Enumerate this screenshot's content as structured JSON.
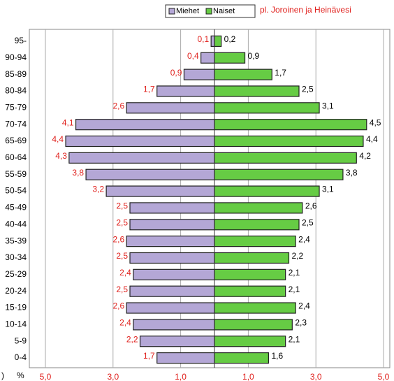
{
  "chart_data": {
    "type": "population-pyramid",
    "legend_annotation": "pl. Joroinen ja Heinävesi",
    "axis_unit": "%",
    "edge_text": ")",
    "categories": [
      "95-",
      "90-94",
      "85-89",
      "80-84",
      "75-79",
      "70-74",
      "65-69",
      "60-64",
      "55-59",
      "50-54",
      "45-49",
      "40-44",
      "35-39",
      "30-34",
      "25-29",
      "20-24",
      "15-19",
      "10-14",
      "5-9",
      "0-4"
    ],
    "series": [
      {
        "name": "Miehet",
        "color": "#b4a7d6",
        "label_color": "#e0201c",
        "side": "left",
        "values": [
          0.1,
          0.4,
          0.9,
          1.7,
          2.6,
          4.1,
          4.4,
          4.3,
          3.8,
          3.2,
          2.5,
          2.5,
          2.6,
          2.5,
          2.4,
          2.5,
          2.6,
          2.4,
          2.2,
          1.7
        ],
        "value_labels": [
          "0,1",
          "0,4",
          "0,9",
          "1,7",
          "2,6",
          "4,1",
          "4,4",
          "4,3",
          "3,8",
          "3,2",
          "2,5",
          "2,5",
          "2,6",
          "2,5",
          "2,4",
          "2,5",
          "2,6",
          "2,4",
          "2,2",
          "1,7"
        ]
      },
      {
        "name": "Naiset",
        "color": "#66cc44",
        "label_color": "#000000",
        "side": "right",
        "values": [
          0.2,
          0.9,
          1.7,
          2.5,
          3.1,
          4.5,
          4.4,
          4.2,
          3.8,
          3.1,
          2.6,
          2.5,
          2.4,
          2.2,
          2.1,
          2.1,
          2.4,
          2.3,
          2.1,
          1.6
        ],
        "value_labels": [
          "0,2",
          "0,9",
          "1,7",
          "2,5",
          "3,1",
          "4,5",
          "4,4",
          "4,2",
          "3,8",
          "3,1",
          "2,6",
          "2,5",
          "2,4",
          "2,2",
          "2,1",
          "2,1",
          "2,4",
          "2,3",
          "2,1",
          "1,6"
        ]
      }
    ],
    "xlim": [
      -5,
      5
    ],
    "xticks": [
      {
        "value": -5,
        "label": "5,0"
      },
      {
        "value": -3,
        "label": "3,0"
      },
      {
        "value": -1,
        "label": "1,0"
      },
      {
        "value": 1,
        "label": "1,0"
      },
      {
        "value": 3,
        "label": "3,0"
      },
      {
        "value": 5,
        "label": "5,0"
      }
    ],
    "grid": true
  }
}
